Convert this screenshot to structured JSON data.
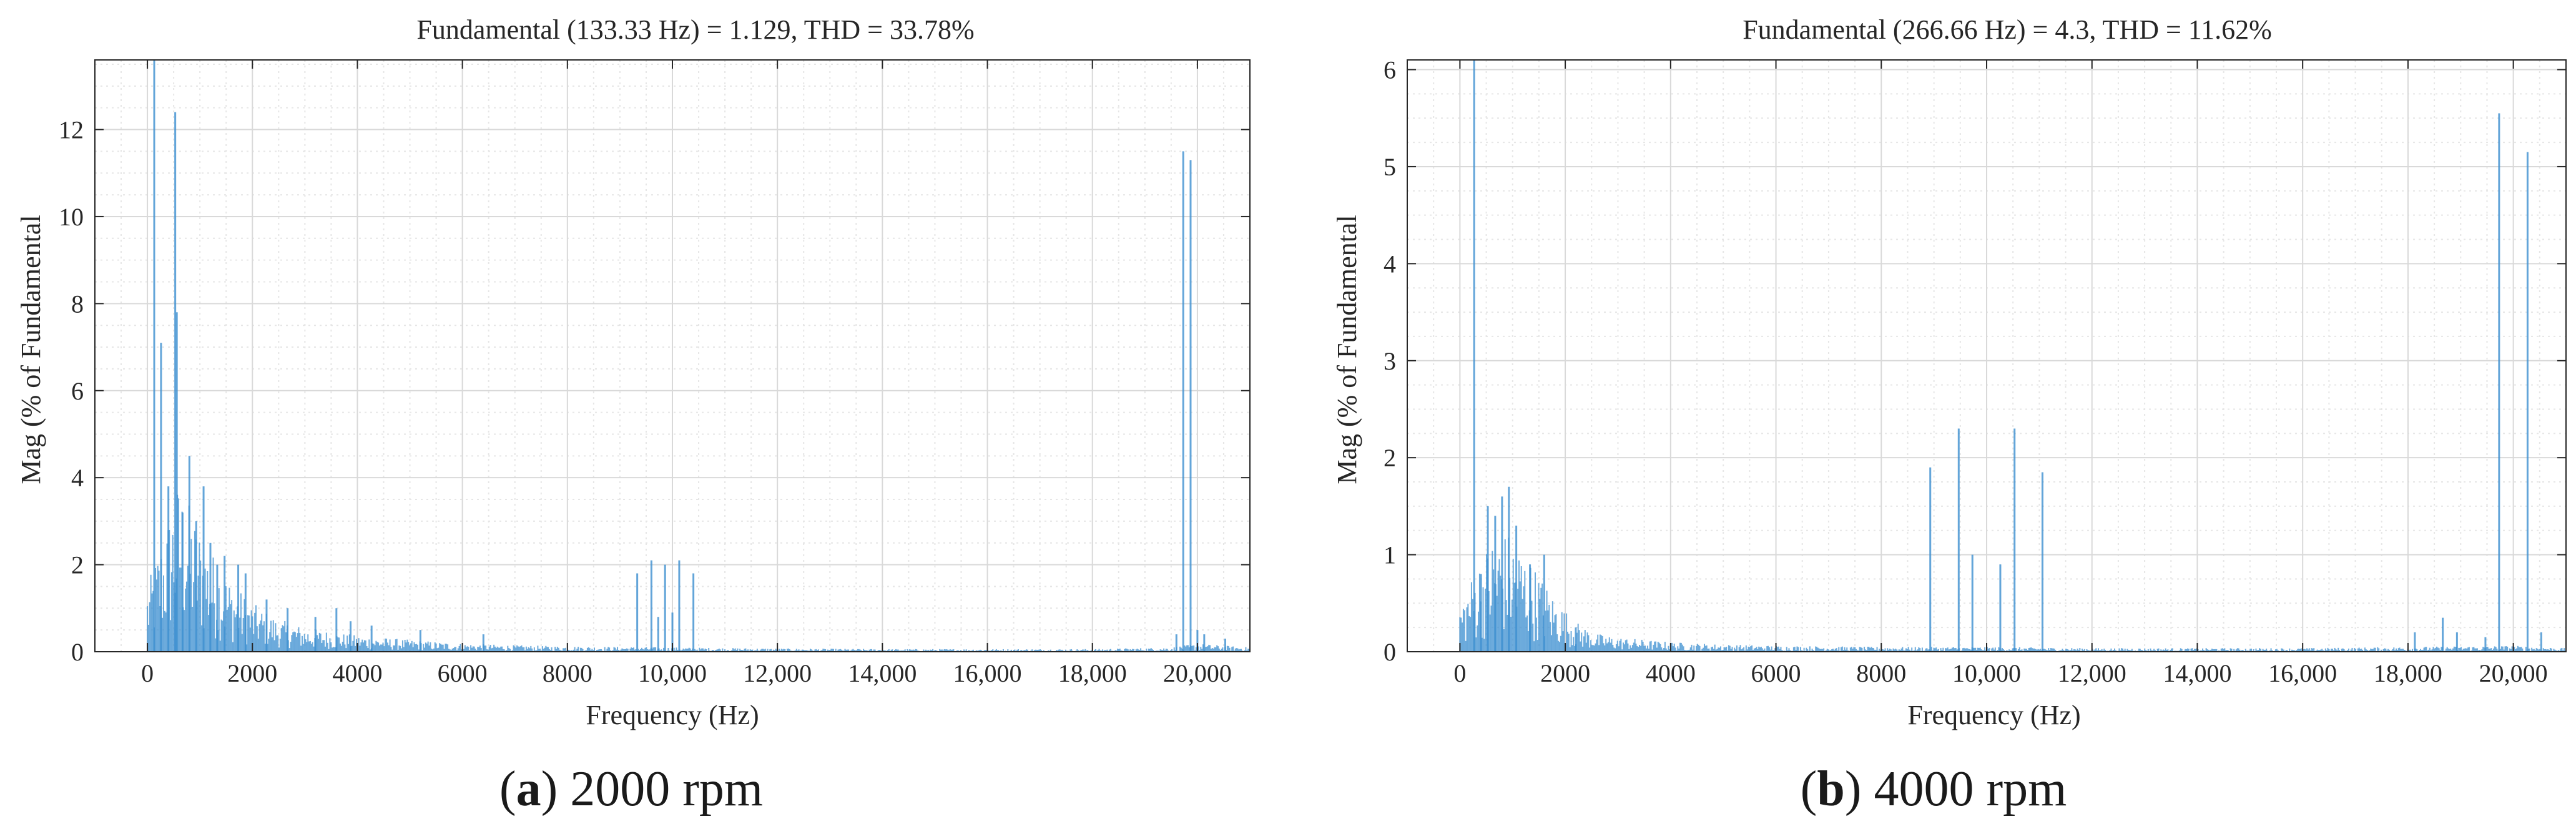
{
  "colors": {
    "bars": "#3c8fd0",
    "axes": "#262626",
    "grid_major": "#d9d9d9",
    "grid_minor": "#e6e6e6",
    "background": "#ffffff"
  },
  "chart_data": [
    {
      "type": "bar",
      "title": "Fundamental (133.33 Hz) = 1.129, THD = 33.78%",
      "xlabel": "Frequency (Hz)",
      "ylabel": "Mag (% of Fundamental",
      "xlim": [
        -1000,
        21000
      ],
      "ylim": [
        0,
        13.6
      ],
      "xticks": [
        0,
        2000,
        4000,
        6000,
        8000,
        10000,
        12000,
        14000,
        16000,
        18000,
        20000
      ],
      "xtick_labels": [
        "0",
        "2000",
        "4000",
        "6000",
        "8000",
        "10,000",
        "12,000",
        "14,000",
        "16,000",
        "18,000",
        "20,000"
      ],
      "yticks": [
        0,
        2,
        4,
        6,
        8,
        10,
        12
      ],
      "ytick_labels": [
        "0",
        "2",
        "4",
        "6",
        "8",
        "10",
        "12"
      ],
      "grid": true,
      "caption": {
        "letter": "a",
        "text": ") 2000 rpm"
      },
      "spikes": [
        {
          "x": 130,
          "y": 13.6
        },
        {
          "x": 260,
          "y": 7.1
        },
        {
          "x": 400,
          "y": 3.8
        },
        {
          "x": 530,
          "y": 12.4
        },
        {
          "x": 560,
          "y": 7.8
        },
        {
          "x": 670,
          "y": 3.2
        },
        {
          "x": 800,
          "y": 4.5
        },
        {
          "x": 930,
          "y": 3.0
        },
        {
          "x": 1070,
          "y": 3.8
        },
        {
          "x": 1200,
          "y": 2.5
        },
        {
          "x": 1330,
          "y": 2.0
        },
        {
          "x": 1470,
          "y": 2.2
        },
        {
          "x": 1730,
          "y": 2.0
        },
        {
          "x": 1870,
          "y": 1.8
        },
        {
          "x": 2270,
          "y": 1.2
        },
        {
          "x": 2670,
          "y": 1.0
        },
        {
          "x": 3200,
          "y": 0.8
        },
        {
          "x": 3600,
          "y": 1.0
        },
        {
          "x": 3870,
          "y": 0.7
        },
        {
          "x": 4270,
          "y": 0.6
        },
        {
          "x": 5200,
          "y": 0.5
        },
        {
          "x": 6400,
          "y": 0.4
        },
        {
          "x": 9330,
          "y": 1.8
        },
        {
          "x": 9600,
          "y": 2.1
        },
        {
          "x": 9730,
          "y": 0.8
        },
        {
          "x": 9860,
          "y": 2.0
        },
        {
          "x": 10000,
          "y": 0.9
        },
        {
          "x": 10130,
          "y": 2.1
        },
        {
          "x": 10400,
          "y": 1.8
        },
        {
          "x": 19600,
          "y": 0.4
        },
        {
          "x": 19730,
          "y": 11.5
        },
        {
          "x": 19870,
          "y": 11.3
        },
        {
          "x": 20000,
          "y": 0.5
        },
        {
          "x": 20130,
          "y": 0.4
        },
        {
          "x": 20530,
          "y": 0.3
        }
      ],
      "envelope": [
        [
          0,
          1.2
        ],
        [
          300,
          2.2
        ],
        [
          600,
          3.2
        ],
        [
          900,
          2.5
        ],
        [
          1200,
          1.9
        ],
        [
          1600,
          1.3
        ],
        [
          2000,
          0.9
        ],
        [
          2500,
          0.6
        ],
        [
          3000,
          0.45
        ],
        [
          4000,
          0.3
        ],
        [
          5000,
          0.22
        ],
        [
          6000,
          0.15
        ],
        [
          7000,
          0.12
        ],
        [
          8000,
          0.1
        ],
        [
          9000,
          0.09
        ],
        [
          10000,
          0.08
        ],
        [
          12000,
          0.06
        ],
        [
          14000,
          0.05
        ],
        [
          16000,
          0.05
        ],
        [
          18000,
          0.05
        ],
        [
          19500,
          0.08
        ],
        [
          20000,
          0.15
        ],
        [
          21000,
          0.08
        ]
      ]
    },
    {
      "type": "bar",
      "title": "Fundamental (266.66 Hz) = 4.3, THD = 11.62%",
      "xlabel": "Frequency (Hz)",
      "ylabel": "Mag (% of Fundamental",
      "xlim": [
        -1000,
        21000
      ],
      "ylim": [
        0,
        6.1
      ],
      "xticks": [
        0,
        2000,
        4000,
        6000,
        8000,
        10000,
        12000,
        14000,
        16000,
        18000,
        20000
      ],
      "xtick_labels": [
        "0",
        "2000",
        "4000",
        "6000",
        "8000",
        "10,000",
        "12,000",
        "14,000",
        "16,000",
        "18,000",
        "20,000"
      ],
      "yticks": [
        0,
        1,
        2,
        3,
        4,
        5,
        6
      ],
      "ytick_labels": [
        "0",
        "1",
        "2",
        "3",
        "4",
        "5",
        "6"
      ],
      "grid": true,
      "caption": {
        "letter": "b",
        "text": ") 4000 rpm"
      },
      "spikes": [
        {
          "x": 270,
          "y": 6.1
        },
        {
          "x": 400,
          "y": 0.8
        },
        {
          "x": 530,
          "y": 1.5
        },
        {
          "x": 670,
          "y": 1.4
        },
        {
          "x": 800,
          "y": 1.6
        },
        {
          "x": 930,
          "y": 1.7
        },
        {
          "x": 1070,
          "y": 1.3
        },
        {
          "x": 1330,
          "y": 0.9
        },
        {
          "x": 1600,
          "y": 1.0
        },
        {
          "x": 2200,
          "y": 0.25
        },
        {
          "x": 8930,
          "y": 1.9
        },
        {
          "x": 9470,
          "y": 2.3
        },
        {
          "x": 9730,
          "y": 1.0
        },
        {
          "x": 10260,
          "y": 0.9
        },
        {
          "x": 10530,
          "y": 2.3
        },
        {
          "x": 11060,
          "y": 1.85
        },
        {
          "x": 18130,
          "y": 0.2
        },
        {
          "x": 18660,
          "y": 0.35
        },
        {
          "x": 18930,
          "y": 0.2
        },
        {
          "x": 19470,
          "y": 0.15
        },
        {
          "x": 19730,
          "y": 5.55
        },
        {
          "x": 20270,
          "y": 5.15
        },
        {
          "x": 20530,
          "y": 0.2
        }
      ],
      "envelope": [
        [
          0,
          0.4
        ],
        [
          300,
          0.7
        ],
        [
          600,
          0.95
        ],
        [
          900,
          1.0
        ],
        [
          1200,
          0.85
        ],
        [
          1500,
          0.65
        ],
        [
          1800,
          0.45
        ],
        [
          2200,
          0.25
        ],
        [
          2600,
          0.15
        ],
        [
          3000,
          0.12
        ],
        [
          4000,
          0.08
        ],
        [
          5000,
          0.06
        ],
        [
          6000,
          0.05
        ],
        [
          8000,
          0.04
        ],
        [
          10000,
          0.04
        ],
        [
          12000,
          0.03
        ],
        [
          14000,
          0.03
        ],
        [
          16000,
          0.03
        ],
        [
          18000,
          0.04
        ],
        [
          20000,
          0.05
        ],
        [
          21000,
          0.03
        ]
      ]
    }
  ]
}
